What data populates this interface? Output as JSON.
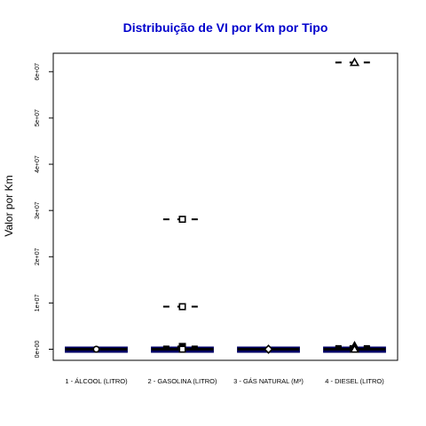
{
  "chart_data": {
    "type": "boxplot",
    "title": "Distribuição de VI por Km por Tipo",
    "xlabel": "",
    "ylabel": "Valor por Km",
    "ylim": [
      -2400000,
      64000000
    ],
    "yticks": [
      0,
      10000000,
      20000000,
      30000000,
      40000000,
      50000000,
      60000000
    ],
    "ytick_labels": [
      "0e+00",
      "1e+07",
      "2e+07",
      "3e+07",
      "4e+07",
      "5e+07",
      "6e+07"
    ],
    "categories": [
      "1 - ÁLCOOL (LITRO)",
      "2 - GASOLINA (LITRO)",
      "3 - GÁS NATURAL (M³)",
      "4 - DIESEL (LITRO)"
    ],
    "box_color": "#000066",
    "series": [
      {
        "category": "1 - ÁLCOOL (LITRO)",
        "box": [
          0,
          0,
          0,
          0,
          0
        ],
        "outliers": [],
        "mean": 0,
        "mean_marker": "circle"
      },
      {
        "category": "2 - GASOLINA (LITRO)",
        "box": [
          0,
          0,
          0,
          0,
          0
        ],
        "outliers": [
          28100000,
          9200000,
          600000,
          350000,
          200000
        ],
        "mean": 0,
        "mean_marker": "square"
      },
      {
        "category": "3 - GÁS NATURAL (M³)",
        "box": [
          0,
          0,
          0,
          0,
          0
        ],
        "outliers": [],
        "mean": 0,
        "mean_marker": "diamond"
      },
      {
        "category": "4 - DIESEL (LITRO)",
        "box": [
          0,
          0,
          0,
          0,
          0
        ],
        "outliers": [
          62000000,
          700000,
          500000,
          300000
        ],
        "mean": 0,
        "mean_marker": "triangle"
      }
    ],
    "grid": false,
    "legend": "none"
  }
}
